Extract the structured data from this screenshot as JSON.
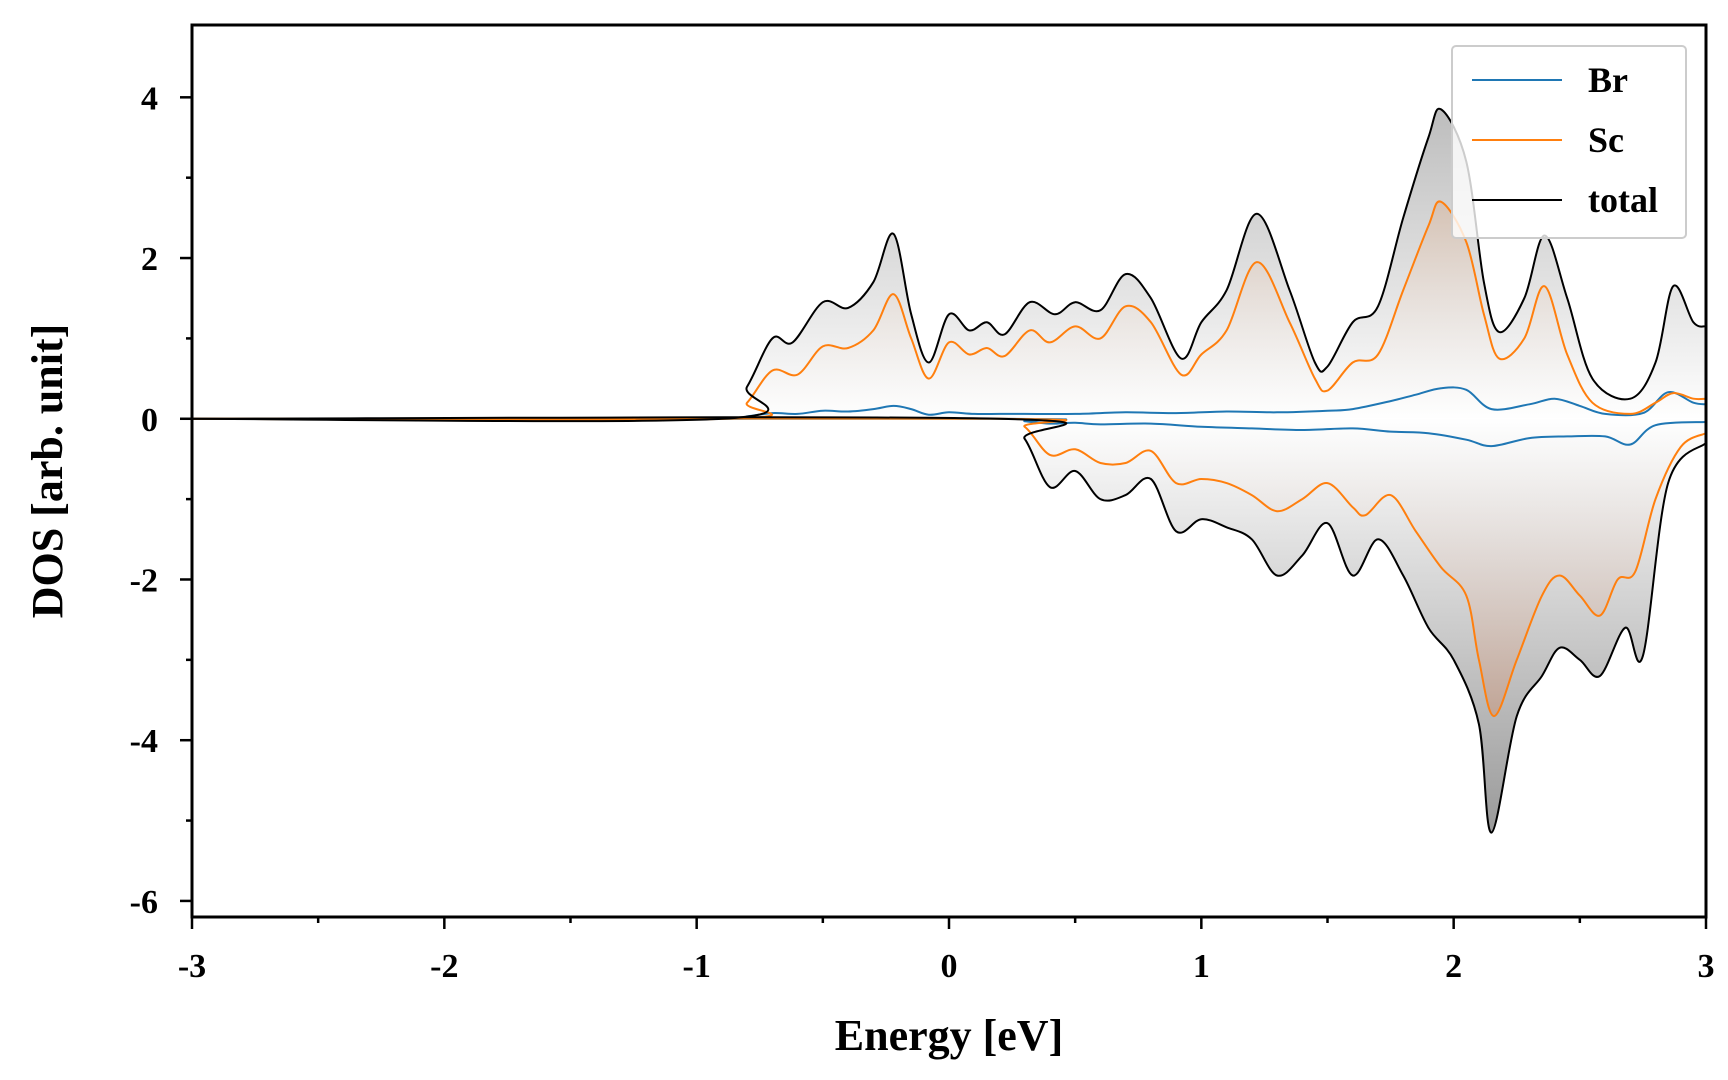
{
  "chart_data": {
    "type": "line",
    "xlabel": "Energy [eV]",
    "ylabel": "DOS [arb. unit]",
    "xlim": [
      -3,
      3
    ],
    "ylim": [
      -6.2,
      4.9
    ],
    "x_ticks": [
      "-3",
      "-2",
      "-1",
      "0",
      "1",
      "2",
      "3"
    ],
    "y_ticks": [
      "-6",
      "-4",
      "-2",
      "0",
      "2",
      "4"
    ],
    "legend": {
      "position": "top-right",
      "entries": [
        "Br",
        "Sc",
        "total"
      ]
    },
    "grid": false,
    "fill_under_total": true,
    "series": [
      {
        "name": "Br",
        "color": "#1f77b4",
        "spin_up": [
          [
            -3,
            0
          ],
          [
            -0.9,
            0
          ],
          [
            -0.8,
            0.03
          ],
          [
            -0.7,
            0.07
          ],
          [
            -0.6,
            0.06
          ],
          [
            -0.5,
            0.1
          ],
          [
            -0.4,
            0.09
          ],
          [
            -0.3,
            0.12
          ],
          [
            -0.22,
            0.16
          ],
          [
            -0.15,
            0.12
          ],
          [
            -0.08,
            0.05
          ],
          [
            0,
            0.08
          ],
          [
            0.1,
            0.06
          ],
          [
            0.2,
            0.06
          ],
          [
            0.3,
            0.06
          ],
          [
            0.5,
            0.06
          ],
          [
            0.7,
            0.08
          ],
          [
            0.9,
            0.07
          ],
          [
            1.1,
            0.09
          ],
          [
            1.3,
            0.08
          ],
          [
            1.5,
            0.1
          ],
          [
            1.6,
            0.12
          ],
          [
            1.75,
            0.22
          ],
          [
            1.85,
            0.3
          ],
          [
            1.95,
            0.38
          ],
          [
            2.05,
            0.36
          ],
          [
            2.15,
            0.12
          ],
          [
            2.3,
            0.18
          ],
          [
            2.4,
            0.25
          ],
          [
            2.5,
            0.16
          ],
          [
            2.6,
            0.06
          ],
          [
            2.75,
            0.07
          ],
          [
            2.85,
            0.33
          ],
          [
            2.95,
            0.2
          ],
          [
            3,
            0.18
          ]
        ],
        "spin_down": [
          [
            -3,
            0
          ],
          [
            0.2,
            0
          ],
          [
            0.3,
            -0.03
          ],
          [
            0.4,
            -0.06
          ],
          [
            0.5,
            -0.05
          ],
          [
            0.6,
            -0.07
          ],
          [
            0.8,
            -0.06
          ],
          [
            1.0,
            -0.1
          ],
          [
            1.2,
            -0.12
          ],
          [
            1.4,
            -0.14
          ],
          [
            1.6,
            -0.12
          ],
          [
            1.75,
            -0.16
          ],
          [
            1.9,
            -0.18
          ],
          [
            2.05,
            -0.26
          ],
          [
            2.15,
            -0.34
          ],
          [
            2.3,
            -0.24
          ],
          [
            2.45,
            -0.22
          ],
          [
            2.6,
            -0.22
          ],
          [
            2.7,
            -0.32
          ],
          [
            2.8,
            -0.08
          ],
          [
            3,
            -0.04
          ]
        ]
      },
      {
        "name": "Sc",
        "color": "#ff7f0e",
        "spin_up": [
          [
            -3,
            0
          ],
          [
            -0.88,
            0
          ],
          [
            -0.8,
            0.2
          ],
          [
            -0.7,
            0.6
          ],
          [
            -0.6,
            0.55
          ],
          [
            -0.5,
            0.9
          ],
          [
            -0.4,
            0.88
          ],
          [
            -0.3,
            1.1
          ],
          [
            -0.22,
            1.55
          ],
          [
            -0.15,
            1.0
          ],
          [
            -0.08,
            0.5
          ],
          [
            0,
            0.95
          ],
          [
            0.08,
            0.8
          ],
          [
            0.15,
            0.88
          ],
          [
            0.22,
            0.78
          ],
          [
            0.32,
            1.1
          ],
          [
            0.4,
            0.95
          ],
          [
            0.5,
            1.15
          ],
          [
            0.6,
            1.0
          ],
          [
            0.7,
            1.4
          ],
          [
            0.8,
            1.2
          ],
          [
            0.92,
            0.55
          ],
          [
            1.0,
            0.8
          ],
          [
            1.1,
            1.1
          ],
          [
            1.22,
            1.95
          ],
          [
            1.35,
            1.2
          ],
          [
            1.45,
            0.5
          ],
          [
            1.5,
            0.35
          ],
          [
            1.6,
            0.7
          ],
          [
            1.7,
            0.8
          ],
          [
            1.8,
            1.6
          ],
          [
            1.9,
            2.4
          ],
          [
            1.95,
            2.7
          ],
          [
            2.05,
            2.2
          ],
          [
            2.12,
            1.3
          ],
          [
            2.18,
            0.75
          ],
          [
            2.28,
            1.0
          ],
          [
            2.36,
            1.65
          ],
          [
            2.45,
            0.8
          ],
          [
            2.55,
            0.2
          ],
          [
            2.7,
            0.06
          ],
          [
            2.8,
            0.2
          ],
          [
            2.87,
            0.32
          ],
          [
            2.95,
            0.25
          ],
          [
            3,
            0.25
          ]
        ],
        "spin_down": [
          [
            -3,
            0
          ],
          [
            0.2,
            0
          ],
          [
            0.3,
            -0.1
          ],
          [
            0.4,
            -0.45
          ],
          [
            0.5,
            -0.38
          ],
          [
            0.6,
            -0.55
          ],
          [
            0.7,
            -0.55
          ],
          [
            0.8,
            -0.4
          ],
          [
            0.9,
            -0.8
          ],
          [
            1.0,
            -0.75
          ],
          [
            1.1,
            -0.8
          ],
          [
            1.2,
            -0.95
          ],
          [
            1.3,
            -1.15
          ],
          [
            1.4,
            -1.0
          ],
          [
            1.5,
            -0.8
          ],
          [
            1.6,
            -1.1
          ],
          [
            1.65,
            -1.2
          ],
          [
            1.75,
            -0.95
          ],
          [
            1.85,
            -1.4
          ],
          [
            1.95,
            -1.85
          ],
          [
            2.05,
            -2.2
          ],
          [
            2.1,
            -3.0
          ],
          [
            2.16,
            -3.7
          ],
          [
            2.25,
            -3.0
          ],
          [
            2.35,
            -2.2
          ],
          [
            2.42,
            -1.95
          ],
          [
            2.5,
            -2.2
          ],
          [
            2.58,
            -2.45
          ],
          [
            2.65,
            -2.0
          ],
          [
            2.72,
            -1.9
          ],
          [
            2.8,
            -1.0
          ],
          [
            2.9,
            -0.35
          ],
          [
            3,
            -0.18
          ]
        ]
      },
      {
        "name": "total",
        "color": "#000000",
        "spin_up": [
          [
            -3,
            0
          ],
          [
            -0.9,
            0
          ],
          [
            -0.8,
            0.4
          ],
          [
            -0.7,
            1.0
          ],
          [
            -0.62,
            0.95
          ],
          [
            -0.5,
            1.45
          ],
          [
            -0.4,
            1.38
          ],
          [
            -0.3,
            1.7
          ],
          [
            -0.22,
            2.3
          ],
          [
            -0.15,
            1.3
          ],
          [
            -0.08,
            0.7
          ],
          [
            0,
            1.3
          ],
          [
            0.08,
            1.1
          ],
          [
            0.15,
            1.2
          ],
          [
            0.22,
            1.05
          ],
          [
            0.32,
            1.45
          ],
          [
            0.42,
            1.3
          ],
          [
            0.5,
            1.45
          ],
          [
            0.6,
            1.35
          ],
          [
            0.7,
            1.8
          ],
          [
            0.8,
            1.5
          ],
          [
            0.92,
            0.75
          ],
          [
            1.0,
            1.2
          ],
          [
            1.1,
            1.6
          ],
          [
            1.22,
            2.55
          ],
          [
            1.35,
            1.6
          ],
          [
            1.45,
            0.7
          ],
          [
            1.5,
            0.65
          ],
          [
            1.6,
            1.2
          ],
          [
            1.7,
            1.4
          ],
          [
            1.8,
            2.5
          ],
          [
            1.9,
            3.5
          ],
          [
            1.95,
            3.85
          ],
          [
            2.05,
            3.2
          ],
          [
            2.12,
            1.7
          ],
          [
            2.18,
            1.08
          ],
          [
            2.28,
            1.5
          ],
          [
            2.36,
            2.28
          ],
          [
            2.45,
            1.5
          ],
          [
            2.55,
            0.5
          ],
          [
            2.7,
            0.25
          ],
          [
            2.8,
            0.7
          ],
          [
            2.87,
            1.65
          ],
          [
            2.95,
            1.2
          ],
          [
            3,
            1.15
          ]
        ],
        "spin_down": [
          [
            -3,
            0
          ],
          [
            0.2,
            0
          ],
          [
            0.3,
            -0.25
          ],
          [
            0.4,
            -0.85
          ],
          [
            0.5,
            -0.65
          ],
          [
            0.6,
            -1.0
          ],
          [
            0.7,
            -0.95
          ],
          [
            0.8,
            -0.75
          ],
          [
            0.9,
            -1.4
          ],
          [
            1.0,
            -1.25
          ],
          [
            1.1,
            -1.35
          ],
          [
            1.2,
            -1.5
          ],
          [
            1.3,
            -1.95
          ],
          [
            1.4,
            -1.7
          ],
          [
            1.5,
            -1.3
          ],
          [
            1.6,
            -1.95
          ],
          [
            1.7,
            -1.5
          ],
          [
            1.8,
            -1.95
          ],
          [
            1.9,
            -2.6
          ],
          [
            2.0,
            -3.0
          ],
          [
            2.1,
            -3.8
          ],
          [
            2.15,
            -5.15
          ],
          [
            2.25,
            -3.7
          ],
          [
            2.35,
            -3.2
          ],
          [
            2.42,
            -2.85
          ],
          [
            2.5,
            -3.0
          ],
          [
            2.58,
            -3.2
          ],
          [
            2.68,
            -2.6
          ],
          [
            2.75,
            -2.95
          ],
          [
            2.85,
            -0.8
          ],
          [
            3,
            -0.3
          ]
        ]
      }
    ]
  }
}
